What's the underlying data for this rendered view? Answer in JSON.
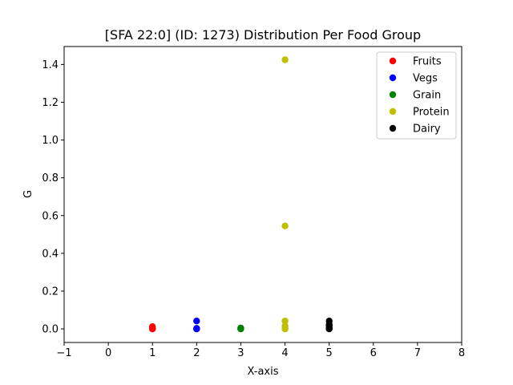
{
  "chart_data": {
    "type": "scatter",
    "title": "[SFA 22:0] (ID: 1273) Distribution Per Food Group",
    "xlabel": "X-axis",
    "ylabel": "G",
    "xlim": [
      -1,
      8
    ],
    "ylim": [
      -0.072,
      1.495
    ],
    "x_ticks": [
      -1,
      0,
      1,
      2,
      3,
      4,
      5,
      6,
      7,
      8
    ],
    "x_tick_labels": [
      "−1",
      "0",
      "1",
      "2",
      "3",
      "4",
      "5",
      "6",
      "7",
      "8"
    ],
    "y_ticks": [
      0.0,
      0.2,
      0.4,
      0.6,
      0.8,
      1.0,
      1.2,
      1.4
    ],
    "y_tick_labels": [
      "0.0",
      "0.2",
      "0.4",
      "0.6",
      "0.8",
      "1.0",
      "1.2",
      "1.4"
    ],
    "grid": false,
    "legend_position": "top-right",
    "series": [
      {
        "name": "Fruits",
        "color": "#ff0000",
        "x": [
          1,
          1,
          1,
          1,
          1
        ],
        "y": [
          0.0,
          0.0,
          0.002,
          0.005,
          0.012
        ]
      },
      {
        "name": "Vegs",
        "color": "#0000ff",
        "x": [
          2,
          2,
          2,
          2,
          2
        ],
        "y": [
          0.0,
          0.0,
          0.001,
          0.003,
          0.042
        ]
      },
      {
        "name": "Grain",
        "color": "#008000",
        "x": [
          3,
          3,
          3,
          3
        ],
        "y": [
          0.0,
          0.0,
          0.002,
          0.005
        ]
      },
      {
        "name": "Protein",
        "color": "#bfbf00",
        "x": [
          4,
          4,
          4,
          4,
          4,
          4,
          4
        ],
        "y": [
          0.0,
          0.0,
          0.005,
          0.015,
          0.042,
          0.545,
          1.425
        ]
      },
      {
        "name": "Dairy",
        "color": "#000000",
        "x": [
          5,
          5,
          5,
          5,
          5,
          5,
          5
        ],
        "y": [
          0.0,
          0.0,
          0.003,
          0.008,
          0.015,
          0.025,
          0.042
        ]
      }
    ]
  }
}
